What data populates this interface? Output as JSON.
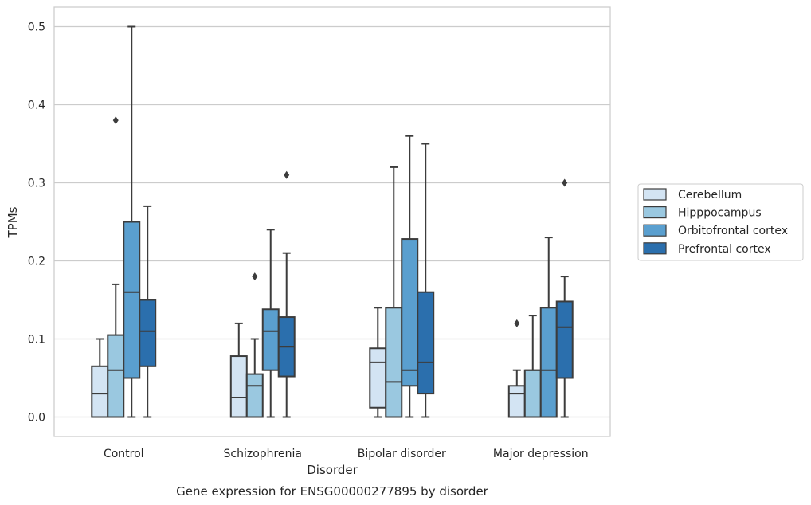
{
  "chart_data": {
    "type": "box",
    "title": "",
    "caption": "Gene expression for ENSG00000277895 by disorder",
    "xlabel": "Disorder",
    "ylabel": "TPMs",
    "ylim": [
      -0.025,
      0.525
    ],
    "yticks": [
      "0.0",
      "0.1",
      "0.2",
      "0.3",
      "0.4",
      "0.5"
    ],
    "ytick_values": [
      0.0,
      0.1,
      0.2,
      0.3,
      0.4,
      0.5
    ],
    "grid": "horizontal",
    "legend_position": "right",
    "categories": [
      "Control",
      "Schizophrenia",
      "Bipolar disorder",
      "Major depression"
    ],
    "series": [
      {
        "name": "Cerebellum",
        "color": "#d3e4f3",
        "boxes": [
          {
            "whisker_low": 0.0,
            "q1": 0.0,
            "median": 0.03,
            "q3": 0.065,
            "whisker_high": 0.1,
            "outliers": []
          },
          {
            "whisker_low": 0.0,
            "q1": 0.0,
            "median": 0.025,
            "q3": 0.078,
            "whisker_high": 0.12,
            "outliers": []
          },
          {
            "whisker_low": 0.0,
            "q1": 0.012,
            "median": 0.07,
            "q3": 0.088,
            "whisker_high": 0.14,
            "outliers": []
          },
          {
            "whisker_low": 0.0,
            "q1": 0.0,
            "median": 0.03,
            "q3": 0.04,
            "whisker_high": 0.06,
            "outliers": [
              0.12
            ]
          }
        ]
      },
      {
        "name": "Hipppocampus",
        "color": "#9ac8e0",
        "boxes": [
          {
            "whisker_low": 0.0,
            "q1": 0.0,
            "median": 0.06,
            "q3": 0.105,
            "whisker_high": 0.17,
            "outliers": [
              0.38
            ]
          },
          {
            "whisker_low": 0.0,
            "q1": 0.0,
            "median": 0.04,
            "q3": 0.055,
            "whisker_high": 0.1,
            "outliers": [
              0.18
            ]
          },
          {
            "whisker_low": 0.0,
            "q1": 0.0,
            "median": 0.045,
            "q3": 0.14,
            "whisker_high": 0.32,
            "outliers": []
          },
          {
            "whisker_low": 0.0,
            "q1": 0.0,
            "median": 0.06,
            "q3": 0.06,
            "whisker_high": 0.13,
            "outliers": []
          }
        ]
      },
      {
        "name": "Orbitofrontal cortex",
        "color": "#5a9fcf",
        "boxes": [
          {
            "whisker_low": 0.0,
            "q1": 0.05,
            "median": 0.16,
            "q3": 0.25,
            "whisker_high": 0.5,
            "outliers": []
          },
          {
            "whisker_low": 0.0,
            "q1": 0.06,
            "median": 0.11,
            "q3": 0.138,
            "whisker_high": 0.24,
            "outliers": []
          },
          {
            "whisker_low": 0.0,
            "q1": 0.04,
            "median": 0.06,
            "q3": 0.228,
            "whisker_high": 0.36,
            "outliers": []
          },
          {
            "whisker_low": 0.0,
            "q1": 0.0,
            "median": 0.06,
            "q3": 0.14,
            "whisker_high": 0.23,
            "outliers": []
          }
        ]
      },
      {
        "name": "Prefrontal cortex",
        "color": "#2b6fad",
        "boxes": [
          {
            "whisker_low": 0.0,
            "q1": 0.065,
            "median": 0.11,
            "q3": 0.15,
            "whisker_high": 0.27,
            "outliers": []
          },
          {
            "whisker_low": 0.0,
            "q1": 0.052,
            "median": 0.09,
            "q3": 0.128,
            "whisker_high": 0.21,
            "outliers": [
              0.31
            ]
          },
          {
            "whisker_low": 0.0,
            "q1": 0.03,
            "median": 0.07,
            "q3": 0.16,
            "whisker_high": 0.35,
            "outliers": []
          },
          {
            "whisker_low": 0.0,
            "q1": 0.05,
            "median": 0.115,
            "q3": 0.148,
            "whisker_high": 0.18,
            "outliers": [
              0.3
            ]
          }
        ]
      }
    ],
    "colors": {
      "grid": "#cccccc",
      "frame": "#cccccc",
      "stroke": "#3c3c3c",
      "text": "#262626"
    }
  }
}
